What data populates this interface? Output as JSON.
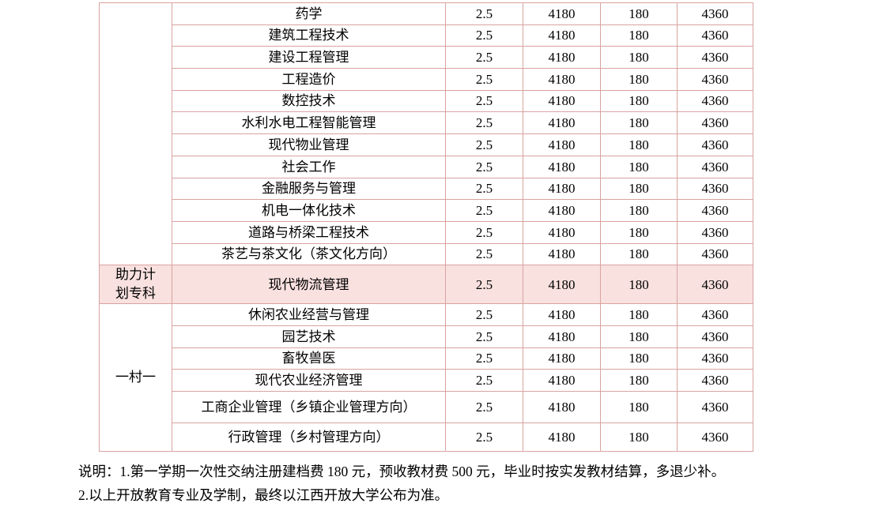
{
  "colors": {
    "border": "#d9a3a1",
    "highlight_bg": "#f8e1df",
    "text": "#000000"
  },
  "table": {
    "sections": [
      {
        "category": "",
        "highlight": false,
        "rows": [
          {
            "major": "药学",
            "years": "2.5",
            "tuition": "4180",
            "registration_fee": "180",
            "total": "4360"
          },
          {
            "major": "建筑工程技术",
            "years": "2.5",
            "tuition": "4180",
            "registration_fee": "180",
            "total": "4360"
          },
          {
            "major": "建设工程管理",
            "years": "2.5",
            "tuition": "4180",
            "registration_fee": "180",
            "total": "4360"
          },
          {
            "major": "工程造价",
            "years": "2.5",
            "tuition": "4180",
            "registration_fee": "180",
            "total": "4360"
          },
          {
            "major": "数控技术",
            "years": "2.5",
            "tuition": "4180",
            "registration_fee": "180",
            "total": "4360"
          },
          {
            "major": "水利水电工程智能管理",
            "years": "2.5",
            "tuition": "4180",
            "registration_fee": "180",
            "total": "4360"
          },
          {
            "major": "现代物业管理",
            "years": "2.5",
            "tuition": "4180",
            "registration_fee": "180",
            "total": "4360"
          },
          {
            "major": "社会工作",
            "years": "2.5",
            "tuition": "4180",
            "registration_fee": "180",
            "total": "4360"
          },
          {
            "major": "金融服务与管理",
            "years": "2.5",
            "tuition": "4180",
            "registration_fee": "180",
            "total": "4360"
          },
          {
            "major": "机电一体化技术",
            "years": "2.5",
            "tuition": "4180",
            "registration_fee": "180",
            "total": "4360"
          },
          {
            "major": "道路与桥梁工程技术",
            "years": "2.5",
            "tuition": "4180",
            "registration_fee": "180",
            "total": "4360"
          },
          {
            "major": "茶艺与茶文化（茶文化方向）",
            "years": "2.5",
            "tuition": "4180",
            "registration_fee": "180",
            "total": "4360"
          }
        ]
      },
      {
        "category": "助力计\n划专科",
        "highlight": true,
        "rows": [
          {
            "major": "现代物流管理",
            "years": "2.5",
            "tuition": "4180",
            "registration_fee": "180",
            "total": "4360"
          }
        ]
      },
      {
        "category": "一村一",
        "highlight": false,
        "rows": [
          {
            "major": "休闲农业经营与管理",
            "years": "2.5",
            "tuition": "4180",
            "registration_fee": "180",
            "total": "4360"
          },
          {
            "major": "园艺技术",
            "years": "2.5",
            "tuition": "4180",
            "registration_fee": "180",
            "total": "4360"
          },
          {
            "major": "畜牧兽医",
            "years": "2.5",
            "tuition": "4180",
            "registration_fee": "180",
            "total": "4360"
          },
          {
            "major": "现代农业经济管理",
            "years": "2.5",
            "tuition": "4180",
            "registration_fee": "180",
            "total": "4360"
          },
          {
            "major": "工商企业管理（乡镇企业管理方向）",
            "years": "2.5",
            "tuition": "4180",
            "registration_fee": "180",
            "total": "4360"
          },
          {
            "major": "行政管理（乡村管理方向）",
            "years": "2.5",
            "tuition": "4180",
            "registration_fee": "180",
            "total": "4360"
          }
        ]
      }
    ]
  },
  "notes": {
    "line1": "说明：1.第一学期一次性交纳注册建档费 180 元，预收教材费 500 元，毕业时按实发教材结算，多退少补。",
    "line2": "2.以上开放教育专业及学制，最终以江西开放大学公布为准。"
  }
}
